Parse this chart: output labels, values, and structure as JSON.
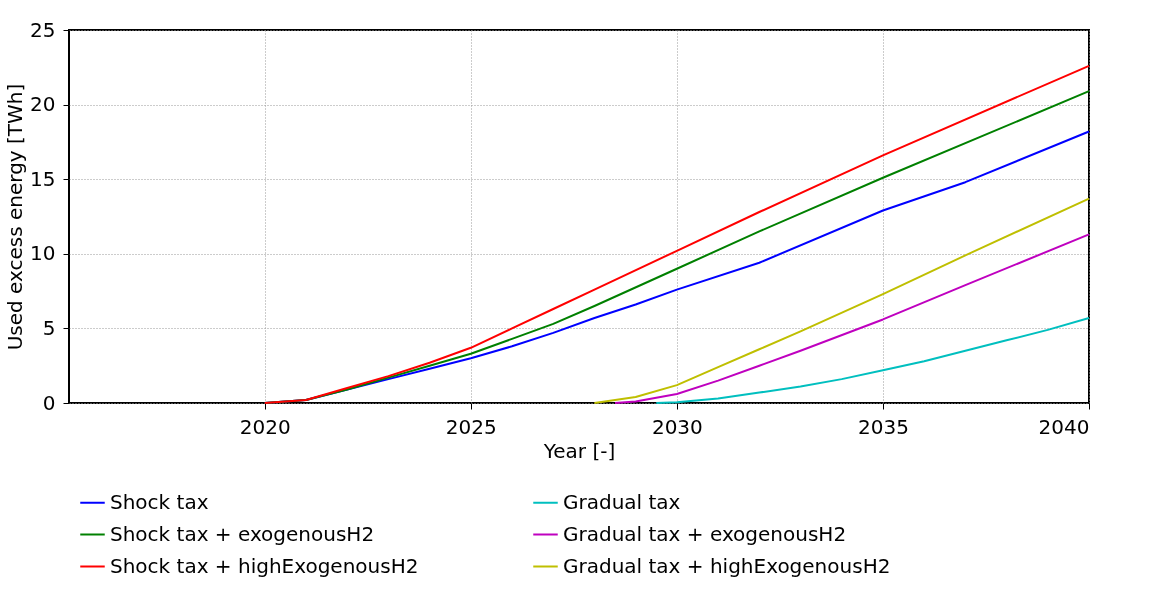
{
  "chart_data": {
    "type": "line",
    "xlabel": "Year [-]",
    "ylabel": "Used excess energy [TWh]",
    "xlim": [
      2015.25,
      2040
    ],
    "xticks": [
      2020,
      2025,
      2030,
      2035,
      2040
    ],
    "ylim": [
      0,
      25
    ],
    "yticks": [
      0,
      5,
      10,
      15,
      20,
      25
    ],
    "grid": true,
    "legend": "bottom",
    "line_style": "solid",
    "marker": "none",
    "series": [
      {
        "name": "Shock tax",
        "color": "#0000ff",
        "x": [
          2020,
          2021,
          2022,
          2023,
          2024,
          2025,
          2026,
          2027,
          2028,
          2029,
          2030,
          2032,
          2035,
          2037,
          2040
        ],
        "values": [
          0,
          0.2,
          0.9,
          1.6,
          2.3,
          3.0,
          3.8,
          4.7,
          5.7,
          6.6,
          7.6,
          9.4,
          12.9,
          14.8,
          18.2
        ]
      },
      {
        "name": "Shock tax + exogenousH2",
        "color": "#008000",
        "x": [
          2020,
          2021,
          2022,
          2023,
          2024,
          2025,
          2026,
          2027,
          2028,
          2030,
          2032,
          2035,
          2040
        ],
        "values": [
          0,
          0.2,
          0.9,
          1.7,
          2.5,
          3.3,
          4.3,
          5.3,
          6.5,
          9.0,
          11.5,
          15.1,
          20.9
        ]
      },
      {
        "name": "Shock tax + highExogenousH2",
        "color": "#ff0000",
        "x": [
          2020,
          2021,
          2022,
          2023,
          2024,
          2025,
          2026,
          2027,
          2028,
          2030,
          2032,
          2035,
          2040
        ],
        "values": [
          0,
          0.2,
          1.0,
          1.8,
          2.7,
          3.7,
          5.0,
          6.3,
          7.6,
          10.2,
          12.8,
          16.6,
          22.6
        ]
      },
      {
        "name": "Gradual tax",
        "color": "#00bfbf",
        "x": [
          2029.5,
          2030,
          2031,
          2032,
          2033,
          2034,
          2035,
          2036,
          2037,
          2038,
          2039,
          2040
        ],
        "values": [
          0,
          0.05,
          0.3,
          0.7,
          1.1,
          1.6,
          2.2,
          2.8,
          3.5,
          4.2,
          4.9,
          5.7
        ]
      },
      {
        "name": "Gradual tax + exogenousH2",
        "color": "#bf00bf",
        "x": [
          2028.5,
          2029,
          2030,
          2031,
          2032,
          2033,
          2035,
          2037,
          2040
        ],
        "values": [
          0,
          0.1,
          0.6,
          1.5,
          2.5,
          3.5,
          5.6,
          7.9,
          11.3
        ]
      },
      {
        "name": "Gradual tax + highExogenousH2",
        "color": "#bfbf00",
        "x": [
          2028,
          2029,
          2030,
          2031,
          2032,
          2033,
          2035,
          2037,
          2040
        ],
        "values": [
          0,
          0.4,
          1.2,
          2.4,
          3.6,
          4.8,
          7.3,
          9.9,
          13.7
        ]
      }
    ]
  }
}
